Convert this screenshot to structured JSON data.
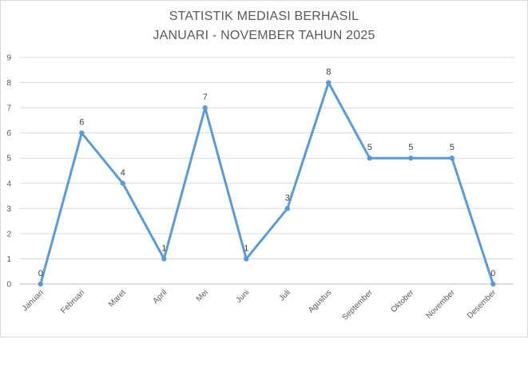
{
  "chart_data": {
    "type": "line",
    "title_line1": "STATISTIK MEDIASI BERHASIL",
    "title_line2": "JANUARI - NOVEMBER TAHUN 2025",
    "categories": [
      "Januari",
      "Februari",
      "Maret",
      "April",
      "Mei",
      "Juni",
      "Juli",
      "Agustus",
      "September",
      "Oktober",
      "November",
      "Desember"
    ],
    "series": [
      {
        "values": [
          0,
          6,
          4,
          1,
          7,
          1,
          3,
          8,
          5,
          5,
          5,
          0
        ]
      }
    ],
    "ylim": [
      0,
      9
    ],
    "yticks": [
      0,
      1,
      2,
      3,
      4,
      5,
      6,
      7,
      8,
      9
    ],
    "grid": true,
    "data_labels": true,
    "line_color": "#5b9bd5",
    "grid_color": "#d9d9d9"
  }
}
